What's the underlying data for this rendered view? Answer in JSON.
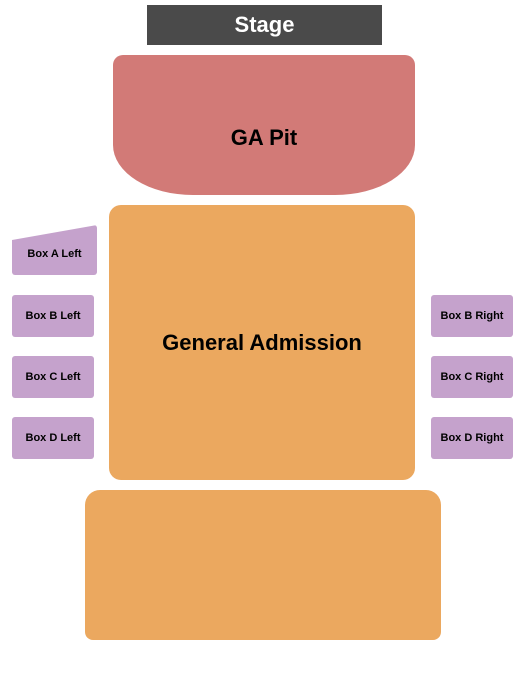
{
  "stage": {
    "label": "Stage",
    "bg_color": "#4a4a4a",
    "text_color": "#ffffff",
    "font_size": 22
  },
  "pit": {
    "label": "GA Pit",
    "bg_color": "#d27a77",
    "font_size": 22
  },
  "general_admission": {
    "label": "General Admission",
    "bg_color": "#eba85f",
    "font_size": 22
  },
  "lower_section": {
    "bg_color": "#eba85f"
  },
  "boxes": {
    "bg_color": "#c5a2cc",
    "font_size": 11,
    "left": [
      {
        "id": "box-a-left",
        "label": "Box A Left"
      },
      {
        "id": "box-b-left",
        "label": "Box B Left"
      },
      {
        "id": "box-c-left",
        "label": "Box C Left"
      },
      {
        "id": "box-d-left",
        "label": "Box D Left"
      }
    ],
    "right": [
      {
        "id": "box-b-right",
        "label": "Box B Right"
      },
      {
        "id": "box-c-right",
        "label": "Box C Right"
      },
      {
        "id": "box-d-right",
        "label": "Box D Right"
      }
    ]
  },
  "colors": {
    "stage_bg": "#4a4a4a",
    "pit_bg": "#d27a77",
    "ga_bg": "#eba85f",
    "box_bg": "#c5a2cc"
  }
}
